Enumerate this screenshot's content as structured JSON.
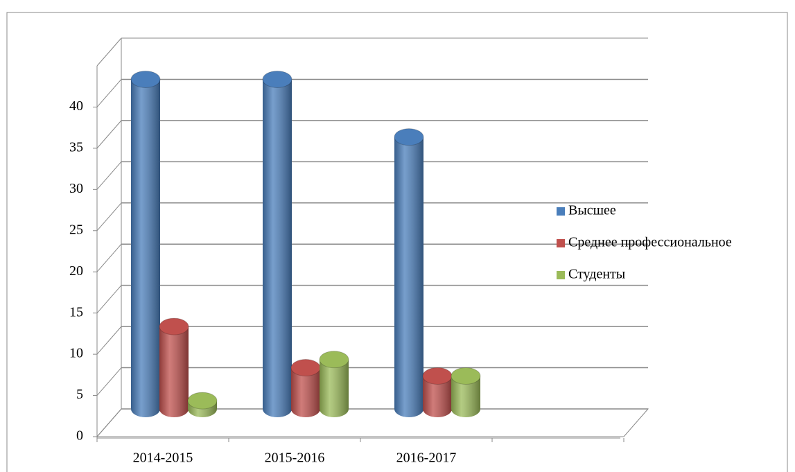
{
  "chart_data": {
    "type": "bar3d",
    "categories": [
      "2014-2015",
      "2015-2016",
      "2016-2017"
    ],
    "series": [
      {
        "name": "Высшее",
        "color": "#4a7ebb",
        "values": [
          40,
          40,
          33
        ]
      },
      {
        "name": "Среднее профессиональное",
        "color": "#c0504d",
        "values": [
          10,
          5,
          4
        ]
      },
      {
        "name": "Студенты",
        "color": "#9bbb59",
        "values": [
          1,
          6,
          4
        ]
      }
    ],
    "ylim": [
      0,
      45
    ],
    "yticks": [
      0,
      5,
      10,
      15,
      20,
      25,
      30,
      35,
      40
    ],
    "grid": true,
    "legend": "right"
  }
}
